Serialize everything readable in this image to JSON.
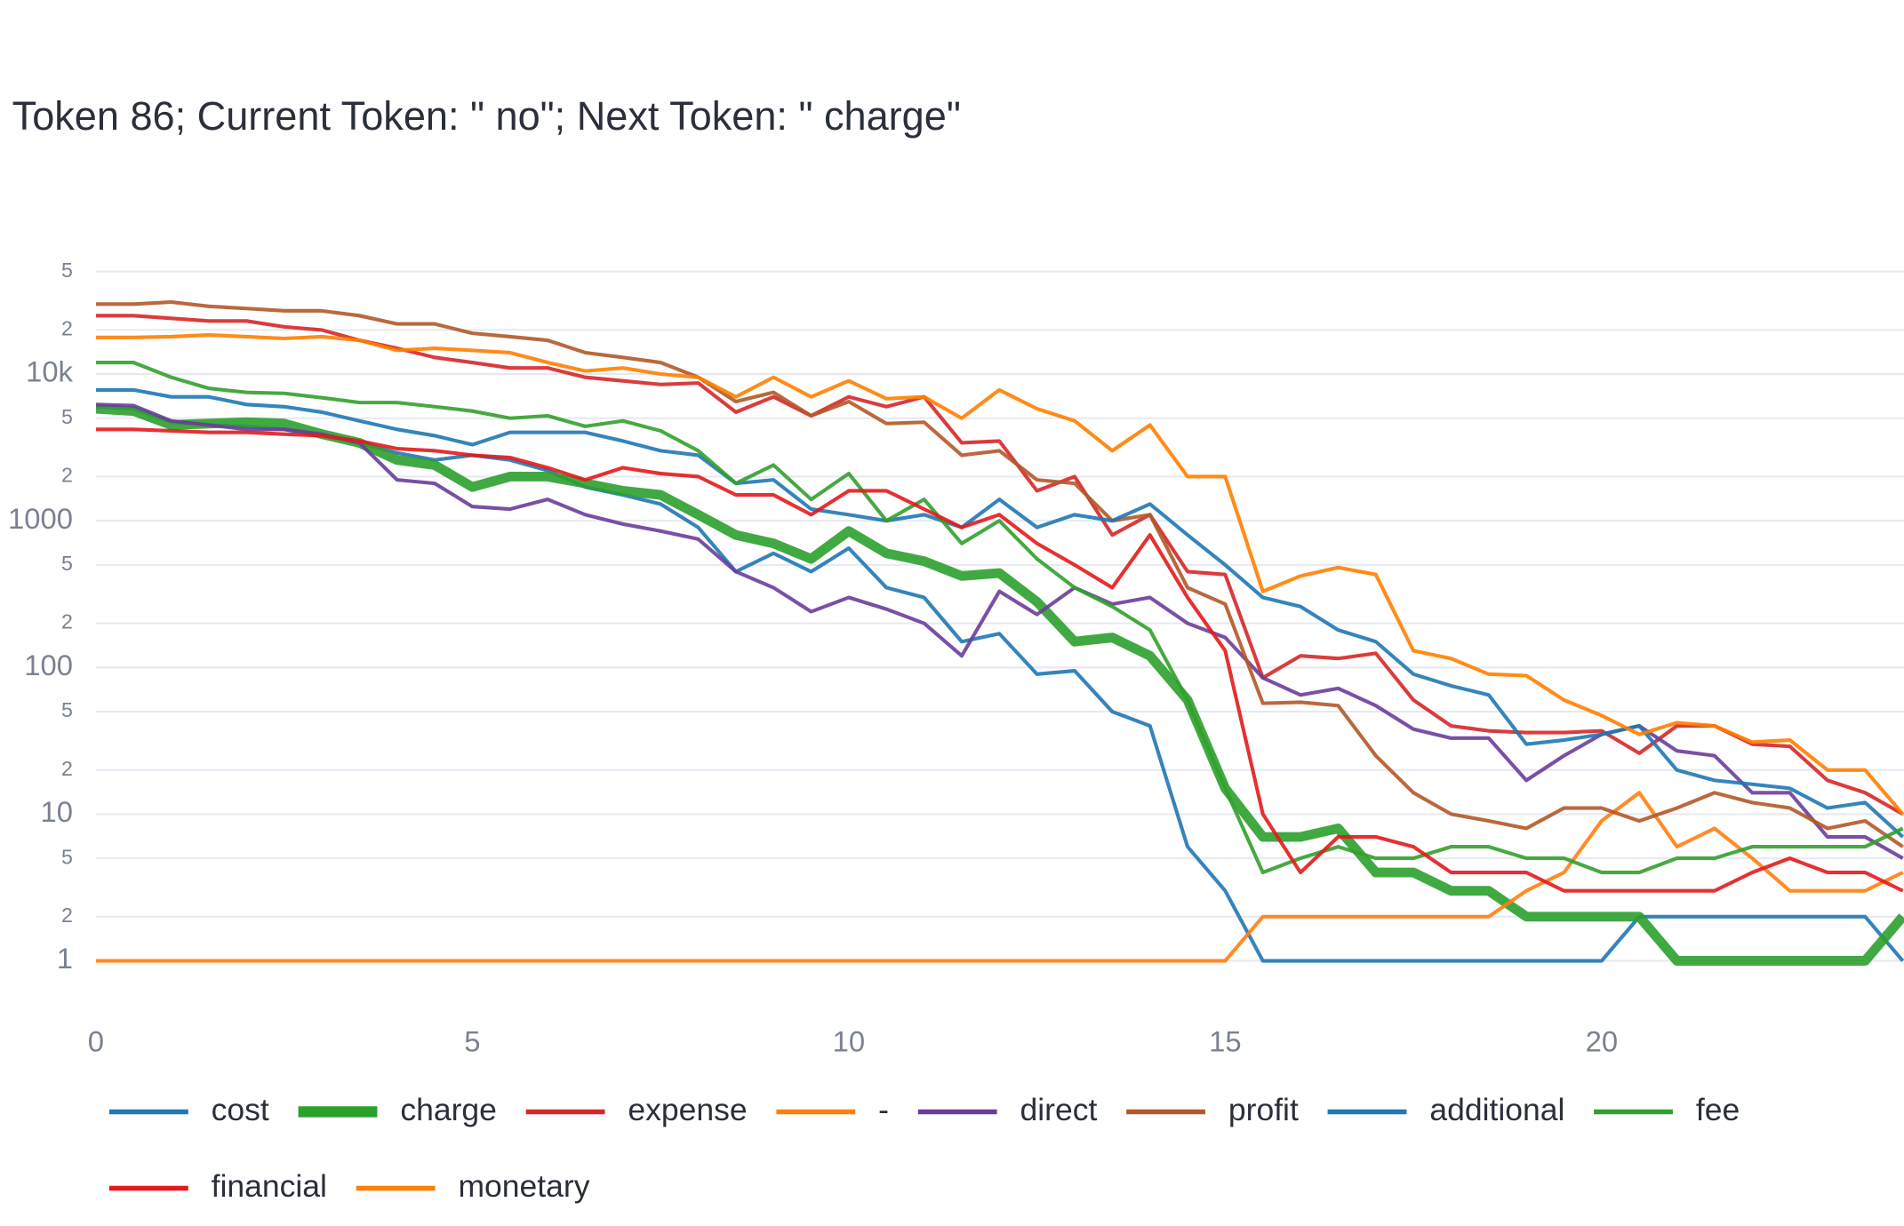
{
  "chart_data": {
    "type": "line",
    "title": "Token 86; Current Token: \" no\"; Next Token: \" charge\"",
    "x": [
      0,
      0.5,
      1,
      1.5,
      2,
      2.5,
      3,
      3.5,
      4,
      4.5,
      5,
      5.5,
      6,
      6.5,
      7,
      7.5,
      8,
      8.5,
      9,
      9.5,
      10,
      10.5,
      11,
      11.5,
      12,
      12.5,
      13,
      13.5,
      14,
      14.5,
      15,
      15.5,
      16,
      16.5,
      17,
      17.5,
      18,
      18.5,
      19,
      19.5,
      20,
      20.5,
      21,
      21.5,
      22,
      22.5,
      23,
      23.5,
      24
    ],
    "xlim": [
      0,
      24
    ],
    "xticks": [
      0,
      5,
      10,
      15,
      20
    ],
    "log_y": true,
    "grid": true,
    "ylim": [
      0.5,
      70000
    ],
    "yticks": [
      1,
      2,
      5,
      10,
      {
        "value": 20,
        "label": "2"
      },
      {
        "value": 50,
        "label": "5"
      },
      100,
      {
        "value": 200,
        "label": "2"
      },
      {
        "value": 500,
        "label": "5"
      },
      1000,
      {
        "value": 2000,
        "label": "2"
      },
      {
        "value": 5000,
        "label": "5"
      },
      {
        "value": 10000,
        "label": "10k"
      },
      {
        "value": 20000,
        "label": "2"
      },
      {
        "value": 50000,
        "label": "5"
      }
    ],
    "series": [
      {
        "name": "cost",
        "color": "#1f77b4",
        "line_width": 3,
        "values": [
          6000,
          5800,
          4700,
          4500,
          4400,
          4200,
          3800,
          3400,
          2900,
          2600,
          2800,
          2600,
          2200,
          1700,
          1500,
          1300,
          900,
          450,
          600,
          450,
          650,
          350,
          300,
          150,
          170,
          90,
          95,
          50,
          40,
          6,
          3,
          1,
          1,
          1,
          1,
          1,
          1,
          1,
          1,
          1,
          1,
          2,
          2,
          2,
          2,
          2,
          2,
          2,
          1
        ]
      },
      {
        "name": "charge",
        "color": "#2ca02c",
        "line_width": 8,
        "values": [
          5800,
          5600,
          4500,
          4600,
          4700,
          4600,
          3900,
          3400,
          2600,
          2400,
          1700,
          2000,
          2000,
          1800,
          1600,
          1500,
          1100,
          800,
          700,
          550,
          850,
          600,
          530,
          420,
          440,
          280,
          150,
          160,
          120,
          60,
          15,
          7,
          7,
          8,
          4,
          4,
          3,
          3,
          2,
          2,
          2,
          2,
          1,
          1,
          1,
          1,
          1,
          1,
          2
        ]
      },
      {
        "name": "expense",
        "color": "#d62728",
        "line_width": 3,
        "values": [
          25000,
          25000,
          24000,
          23000,
          23000,
          21000,
          20000,
          17000,
          15000,
          13000,
          12000,
          11000,
          11000,
          9500,
          9000,
          8500,
          8700,
          5500,
          7000,
          5200,
          7000,
          6000,
          7000,
          3400,
          3500,
          1600,
          2000,
          800,
          1100,
          450,
          430,
          85,
          120,
          115,
          125,
          60,
          40,
          37,
          36,
          36,
          37,
          26,
          40,
          40,
          30,
          29,
          17,
          14,
          10
        ]
      },
      {
        "name": "-",
        "color": "#ff7f0e",
        "line_width": 3,
        "values": [
          1,
          1,
          1,
          1,
          1,
          1,
          1,
          1,
          1,
          1,
          1,
          1,
          1,
          1,
          1,
          1,
          1,
          1,
          1,
          1,
          1,
          1,
          1,
          1,
          1,
          1,
          1,
          1,
          1,
          1,
          1,
          2,
          2,
          2,
          2,
          2,
          2,
          2,
          3,
          4,
          9,
          14,
          6,
          8,
          5,
          3,
          3,
          3,
          4
        ]
      },
      {
        "name": "direct",
        "color": "#6a3d9a",
        "line_width": 3,
        "values": [
          6200,
          6100,
          4800,
          4500,
          4200,
          4200,
          3900,
          3400,
          1900,
          1800,
          1250,
          1200,
          1400,
          1100,
          950,
          850,
          750,
          450,
          350,
          240,
          300,
          250,
          200,
          120,
          330,
          230,
          350,
          270,
          300,
          200,
          160,
          85,
          65,
          72,
          55,
          38,
          33,
          33,
          17,
          25,
          35,
          40,
          27,
          25,
          14,
          14,
          7,
          7,
          5
        ]
      },
      {
        "name": "profit",
        "color": "#b15928",
        "line_width": 3,
        "values": [
          30000,
          30000,
          31000,
          29000,
          28000,
          27000,
          27000,
          25000,
          22000,
          22000,
          19000,
          18000,
          17000,
          14000,
          13000,
          12000,
          9500,
          6500,
          7500,
          5200,
          6500,
          4600,
          4700,
          2800,
          3000,
          1900,
          1800,
          1000,
          1100,
          350,
          270,
          57,
          58,
          55,
          25,
          14,
          10,
          9,
          8,
          11,
          11,
          9,
          11,
          14,
          12,
          11,
          8,
          9,
          6
        ]
      },
      {
        "name": "additional",
        "color": "#1f78b4",
        "line_width": 3,
        "values": [
          7800,
          7800,
          7000,
          7000,
          6200,
          6000,
          5500,
          4800,
          4200,
          3800,
          3300,
          4000,
          4000,
          4000,
          3500,
          3000,
          2800,
          1800,
          1900,
          1200,
          1100,
          1000,
          1100,
          900,
          1400,
          900,
          1100,
          1000,
          1300,
          800,
          500,
          300,
          260,
          180,
          150,
          90,
          75,
          65,
          30,
          32,
          35,
          40,
          20,
          17,
          16,
          15,
          11,
          12,
          7
        ]
      },
      {
        "name": "fee",
        "color": "#33a02c",
        "line_width": 3,
        "values": [
          12000,
          12000,
          9500,
          8000,
          7500,
          7400,
          6900,
          6400,
          6400,
          6000,
          5600,
          5000,
          5200,
          4400,
          4800,
          4100,
          3000,
          1800,
          2400,
          1400,
          2100,
          1000,
          1400,
          700,
          1000,
          550,
          350,
          260,
          180,
          60,
          15,
          4,
          5,
          6,
          5,
          5,
          6,
          6,
          5,
          5,
          4,
          4,
          5,
          5,
          6,
          6,
          6,
          6,
          8
        ]
      },
      {
        "name": "financial",
        "color": "#e31a1c",
        "line_width": 3,
        "values": [
          4200,
          4200,
          4100,
          4000,
          4000,
          3900,
          3800,
          3500,
          3100,
          3000,
          2800,
          2700,
          2300,
          1900,
          2300,
          2100,
          2000,
          1500,
          1500,
          1100,
          1600,
          1600,
          1200,
          900,
          1100,
          700,
          500,
          350,
          800,
          300,
          130,
          10,
          4,
          7,
          7,
          6,
          4,
          4,
          4,
          3,
          3,
          3,
          3,
          3,
          4,
          5,
          4,
          4,
          3
        ]
      },
      {
        "name": "monetary",
        "color": "#ff7f00",
        "line_width": 3,
        "values": [
          17800,
          17800,
          18000,
          18500,
          18000,
          17500,
          18000,
          17000,
          14500,
          15000,
          14500,
          14000,
          12000,
          10500,
          11000,
          10000,
          9500,
          7000,
          9500,
          7000,
          9000,
          6800,
          7000,
          5000,
          7800,
          5800,
          4800,
          3000,
          4500,
          2000,
          2000,
          330,
          420,
          480,
          430,
          130,
          115,
          90,
          88,
          60,
          47,
          35,
          42,
          40,
          31,
          32,
          20,
          20,
          10
        ]
      }
    ]
  }
}
